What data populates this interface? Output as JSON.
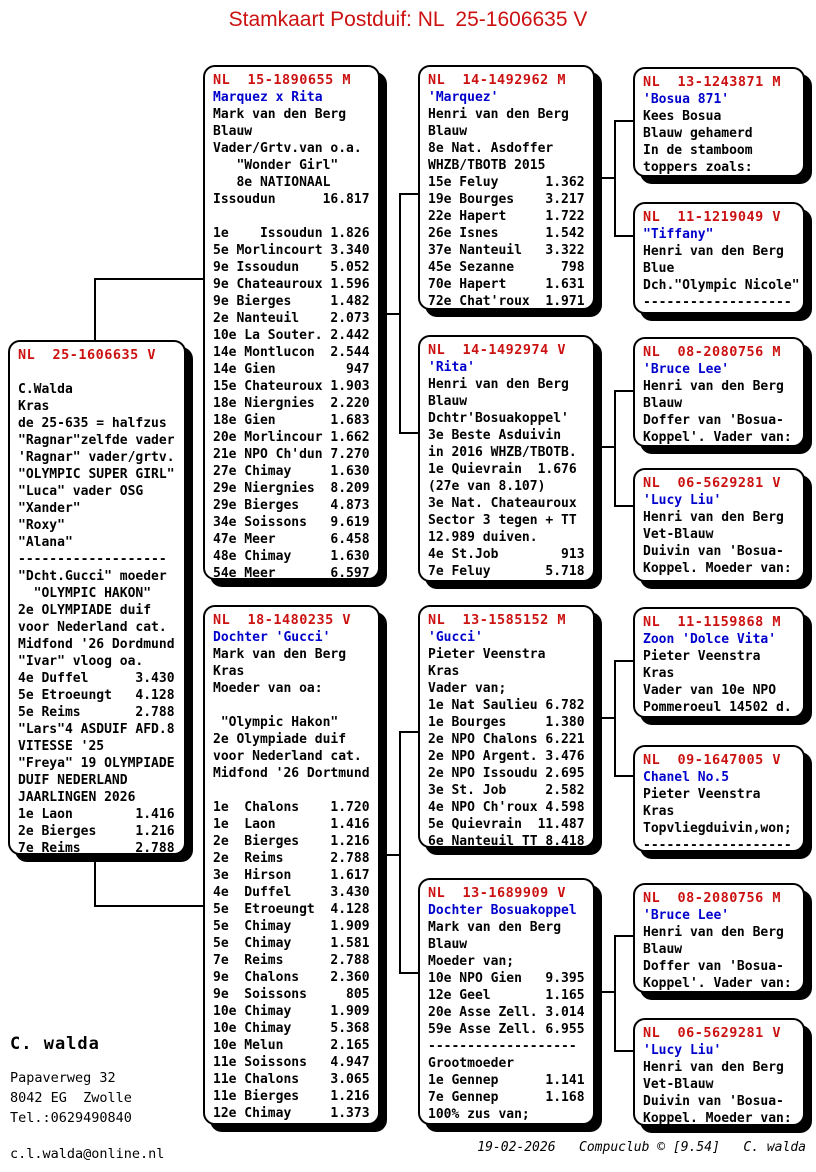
{
  "title": "Stamkaart Postduif: NL  25-1606635 V",
  "colors": {
    "ring_red": "#cc1111",
    "name_blue": "#0000cc"
  },
  "boxes": [
    {
      "header": "NL  25-1606635 V",
      "lines": [
        {
          "s": "b",
          "t": ""
        },
        {
          "s": "t",
          "t": "C.Walda"
        },
        {
          "s": "t",
          "t": "Kras"
        },
        {
          "s": "t",
          "t": "de 25-635 = halfzus"
        },
        {
          "s": "t",
          "t": "\"Ragnar\"zelfde vader"
        },
        {
          "s": "t",
          "t": "'Ragnar\" vader/grtv."
        },
        {
          "s": "t",
          "t": "\"OLYMPIC SUPER GIRL\""
        },
        {
          "s": "t",
          "t": "\"Luca\" vader OSG"
        },
        {
          "s": "t",
          "t": "\"Xander\""
        },
        {
          "s": "t",
          "t": "\"Roxy\""
        },
        {
          "s": "t",
          "t": "\"Alana\""
        },
        {
          "s": "t",
          "t": "-------------------"
        },
        {
          "s": "t",
          "t": "\"Dcht.Gucci\" moeder"
        },
        {
          "s": "t",
          "t": "  \"OLYMPIC HAKON\""
        },
        {
          "s": "t",
          "t": "2e OLYMPIADE duif"
        },
        {
          "s": "t",
          "t": "voor Nederland cat."
        },
        {
          "s": "t",
          "t": "Midfond '26 Dordmund"
        },
        {
          "s": "t",
          "t": "\"Ivar\" vloog oa."
        },
        {
          "s": "t",
          "t": "4e Duffel      3.430"
        },
        {
          "s": "t",
          "t": "5e Etroeungt   4.128"
        },
        {
          "s": "t",
          "t": "5e Reims       2.788"
        },
        {
          "s": "t",
          "t": "\"Lars\"4 ASDUIF AFD.8"
        },
        {
          "s": "t",
          "t": "VITESSE '25"
        },
        {
          "s": "t",
          "t": "\"Freya\" 19 OLYMPIADE"
        },
        {
          "s": "t",
          "t": "DUIF NEDERLAND"
        },
        {
          "s": "t",
          "t": "JAARLINGEN 2026"
        },
        {
          "s": "t",
          "t": "1e Laon        1.416"
        },
        {
          "s": "t",
          "t": "2e Bierges     1.216"
        },
        {
          "s": "t",
          "t": "7e Reims       2.788"
        }
      ]
    },
    {
      "header": "NL  15-1890655 M",
      "lines": [
        {
          "s": "n",
          "t": "Marquez x Rita"
        },
        {
          "s": "t",
          "t": "Mark van den Berg"
        },
        {
          "s": "t",
          "t": "Blauw"
        },
        {
          "s": "t",
          "t": "Vader/Grtv.van o.a."
        },
        {
          "s": "t",
          "t": "   \"Wonder Girl\""
        },
        {
          "s": "t",
          "t": "   8e NATIONAAL"
        },
        {
          "s": "t",
          "t": "Issoudun      16.817"
        },
        {
          "s": "b",
          "t": ""
        },
        {
          "s": "t",
          "t": "1e    Issoudun 1.826"
        },
        {
          "s": "t",
          "t": "5e Morlincourt 3.340"
        },
        {
          "s": "t",
          "t": "9e Issoudun    5.052"
        },
        {
          "s": "t",
          "t": "9e Chateauroux 1.596"
        },
        {
          "s": "t",
          "t": "9e Bierges     1.482"
        },
        {
          "s": "t",
          "t": "2e Nanteuil    2.073"
        },
        {
          "s": "t",
          "t": "10e La Souter. 2.442"
        },
        {
          "s": "t",
          "t": "14e Montlucon  2.544"
        },
        {
          "s": "t",
          "t": "14e Gien         947"
        },
        {
          "s": "t",
          "t": "15e Chateuroux 1.903"
        },
        {
          "s": "t",
          "t": "18e Niergnies  2.220"
        },
        {
          "s": "t",
          "t": "18e Gien       1.683"
        },
        {
          "s": "t",
          "t": "20e Morlincour 1.662"
        },
        {
          "s": "t",
          "t": "21e NPO Ch'dun 7.270"
        },
        {
          "s": "t",
          "t": "27e Chimay     1.630"
        },
        {
          "s": "t",
          "t": "29e Niergnies  8.209"
        },
        {
          "s": "t",
          "t": "29e Bierges    4.873"
        },
        {
          "s": "t",
          "t": "34e Soissons   9.619"
        },
        {
          "s": "t",
          "t": "47e Meer       6.458"
        },
        {
          "s": "t",
          "t": "48e Chimay     1.630"
        },
        {
          "s": "t",
          "t": "54e Meer       6.597"
        }
      ]
    },
    {
      "header": "NL  18-1480235 V",
      "lines": [
        {
          "s": "n",
          "t": "Dochter 'Gucci'"
        },
        {
          "s": "t",
          "t": "Mark van den Berg"
        },
        {
          "s": "t",
          "t": "Kras"
        },
        {
          "s": "t",
          "t": "Moeder van oa:"
        },
        {
          "s": "b",
          "t": ""
        },
        {
          "s": "t",
          "t": " \"Olympic Hakon\""
        },
        {
          "s": "t",
          "t": "2e Olympiade duif"
        },
        {
          "s": "t",
          "t": "voor Nederland cat."
        },
        {
          "s": "t",
          "t": "Midfond '26 Dortmund"
        },
        {
          "s": "b",
          "t": ""
        },
        {
          "s": "t",
          "t": "1e  Chalons    1.720"
        },
        {
          "s": "t",
          "t": "1e  Laon       1.416"
        },
        {
          "s": "t",
          "t": "2e  Bierges    1.216"
        },
        {
          "s": "t",
          "t": "2e  Reims      2.788"
        },
        {
          "s": "t",
          "t": "3e  Hirson     1.617"
        },
        {
          "s": "t",
          "t": "4e  Duffel     3.430"
        },
        {
          "s": "t",
          "t": "5e  Etroeungt  4.128"
        },
        {
          "s": "t",
          "t": "5e  Chimay     1.909"
        },
        {
          "s": "t",
          "t": "5e  Chimay     1.581"
        },
        {
          "s": "t",
          "t": "7e  Reims      2.788"
        },
        {
          "s": "t",
          "t": "9e  Chalons    2.360"
        },
        {
          "s": "t",
          "t": "9e  Soissons     805"
        },
        {
          "s": "t",
          "t": "10e Chimay     1.909"
        },
        {
          "s": "t",
          "t": "10e Chimay     5.368"
        },
        {
          "s": "t",
          "t": "10e Melun      2.165"
        },
        {
          "s": "t",
          "t": "11e Soissons   4.947"
        },
        {
          "s": "t",
          "t": "11e Chalons    3.065"
        },
        {
          "s": "t",
          "t": "11e Bierges    1.216"
        },
        {
          "s": "t",
          "t": "12e Chimay     1.373"
        }
      ]
    },
    {
      "header": "NL  14-1492962 M",
      "lines": [
        {
          "s": "n",
          "t": "'Marquez'"
        },
        {
          "s": "t",
          "t": "Henri van den Berg"
        },
        {
          "s": "t",
          "t": "Blauw"
        },
        {
          "s": "t",
          "t": "8e Nat. Asdoffer"
        },
        {
          "s": "t",
          "t": "WHZB/TBOTB 2015"
        },
        {
          "s": "t",
          "t": "15e Feluy      1.362"
        },
        {
          "s": "t",
          "t": "19e Bourges    3.217"
        },
        {
          "s": "t",
          "t": "22e Hapert     1.722"
        },
        {
          "s": "t",
          "t": "26e Isnes      1.542"
        },
        {
          "s": "t",
          "t": "37e Nanteuil   3.322"
        },
        {
          "s": "t",
          "t": "45e Sezanne      798"
        },
        {
          "s": "t",
          "t": "70e Hapert     1.631"
        },
        {
          "s": "t",
          "t": "72e Chat'roux  1.971"
        }
      ]
    },
    {
      "header": "NL  14-1492974 V",
      "lines": [
        {
          "s": "n",
          "t": "'Rita'"
        },
        {
          "s": "t",
          "t": "Henri van den Berg"
        },
        {
          "s": "t",
          "t": "Blauw"
        },
        {
          "s": "t",
          "t": "Dchtr'Bosuakoppel'"
        },
        {
          "s": "t",
          "t": "3e Beste Asduivin"
        },
        {
          "s": "t",
          "t": "in 2016 WHZB/TBOTB."
        },
        {
          "s": "t",
          "t": "1e Quievrain  1.676"
        },
        {
          "s": "t",
          "t": "(27e van 8.107)"
        },
        {
          "s": "t",
          "t": "3e Nat. Chateauroux"
        },
        {
          "s": "t",
          "t": "Sector 3 tegen + TT"
        },
        {
          "s": "t",
          "t": "12.989 duiven."
        },
        {
          "s": "t",
          "t": "4e St.Job        913"
        },
        {
          "s": "t",
          "t": "7e Feluy       5.718"
        }
      ]
    },
    {
      "header": "NL  13-1585152 M",
      "lines": [
        {
          "s": "n",
          "t": "'Gucci'"
        },
        {
          "s": "t",
          "t": "Pieter Veenstra"
        },
        {
          "s": "t",
          "t": "Kras"
        },
        {
          "s": "t",
          "t": "Vader van;"
        },
        {
          "s": "t",
          "t": "1e Nat Saulieu 6.782"
        },
        {
          "s": "t",
          "t": "1e Bourges     1.380"
        },
        {
          "s": "t",
          "t": "2e NPO Chalons 6.221"
        },
        {
          "s": "t",
          "t": "2e NPO Argent. 3.476"
        },
        {
          "s": "t",
          "t": "2e NPO Issoudu 2.695"
        },
        {
          "s": "t",
          "t": "3e St. Job     2.582"
        },
        {
          "s": "t",
          "t": "4e NPO Ch'roux 4.598"
        },
        {
          "s": "t",
          "t": "5e Quievrain  11.487"
        },
        {
          "s": "t",
          "t": "6e Nanteuil TT 8.418"
        }
      ]
    },
    {
      "header": "NL  13-1689909 V",
      "lines": [
        {
          "s": "n",
          "t": "Dochter Bosuakoppel"
        },
        {
          "s": "t",
          "t": "Mark van den Berg"
        },
        {
          "s": "t",
          "t": "Blauw"
        },
        {
          "s": "t",
          "t": "Moeder van;"
        },
        {
          "s": "t",
          "t": "10e NPO Gien   9.395"
        },
        {
          "s": "t",
          "t": "12e Geel       1.165"
        },
        {
          "s": "t",
          "t": "20e Asse Zell. 3.014"
        },
        {
          "s": "t",
          "t": "59e Asse Zell. 6.955"
        },
        {
          "s": "t",
          "t": "-------------------"
        },
        {
          "s": "t",
          "t": "Grootmoeder"
        },
        {
          "s": "t",
          "t": "1e Gennep      1.141"
        },
        {
          "s": "t",
          "t": "7e Gennep      1.168"
        },
        {
          "s": "t",
          "t": "100% zus van;"
        }
      ]
    },
    {
      "header": "NL  13-1243871 M",
      "lines": [
        {
          "s": "n",
          "t": "'Bosua 871'"
        },
        {
          "s": "t",
          "t": "Kees Bosua"
        },
        {
          "s": "t",
          "t": "Blauw gehamerd"
        },
        {
          "s": "t",
          "t": "In de stamboom"
        },
        {
          "s": "t",
          "t": "toppers zoals:"
        }
      ]
    },
    {
      "header": "NL  11-1219049 V",
      "lines": [
        {
          "s": "n",
          "t": "\"Tiffany\""
        },
        {
          "s": "t",
          "t": "Henri van den Berg"
        },
        {
          "s": "t",
          "t": "Blue"
        },
        {
          "s": "t",
          "t": "Dch.\"Olympic Nicole\""
        },
        {
          "s": "t",
          "t": "-------------------"
        }
      ]
    },
    {
      "header": "NL  08-2080756 M",
      "lines": [
        {
          "s": "n",
          "t": "'Bruce Lee'"
        },
        {
          "s": "t",
          "t": "Henri van den Berg"
        },
        {
          "s": "t",
          "t": "Blauw"
        },
        {
          "s": "t",
          "t": "Doffer van 'Bosua-"
        },
        {
          "s": "t",
          "t": "Koppel'. Vader van:"
        }
      ]
    },
    {
      "header": "NL  06-5629281 V",
      "lines": [
        {
          "s": "n",
          "t": "'Lucy Liu'"
        },
        {
          "s": "t",
          "t": "Henri van den Berg"
        },
        {
          "s": "t",
          "t": "Vet-Blauw"
        },
        {
          "s": "t",
          "t": "Duivin van 'Bosua-"
        },
        {
          "s": "t",
          "t": "Koppel. Moeder van:"
        }
      ]
    },
    {
      "header": "NL  11-1159868 M",
      "lines": [
        {
          "s": "n",
          "t": "Zoon 'Dolce Vita'"
        },
        {
          "s": "t",
          "t": "Pieter Veenstra"
        },
        {
          "s": "t",
          "t": "Kras"
        },
        {
          "s": "t",
          "t": "Vader van 10e NPO"
        },
        {
          "s": "t",
          "t": "Pommeroeul 14502 d."
        }
      ]
    },
    {
      "header": "NL  09-1647005 V",
      "lines": [
        {
          "s": "n",
          "t": "Chanel No.5"
        },
        {
          "s": "t",
          "t": "Pieter Veenstra"
        },
        {
          "s": "t",
          "t": "Kras"
        },
        {
          "s": "t",
          "t": "Topvliegduivin,won;"
        },
        {
          "s": "t",
          "t": "-------------------"
        }
      ]
    },
    {
      "header": "NL  08-2080756 M",
      "lines": [
        {
          "s": "n",
          "t": "'Bruce Lee'"
        },
        {
          "s": "t",
          "t": "Henri van den Berg"
        },
        {
          "s": "t",
          "t": "Blauw"
        },
        {
          "s": "t",
          "t": "Doffer van 'Bosua-"
        },
        {
          "s": "t",
          "t": "Koppel'. Vader van:"
        }
      ]
    },
    {
      "header": "NL  06-5629281 V",
      "lines": [
        {
          "s": "n",
          "t": "'Lucy Liu'"
        },
        {
          "s": "t",
          "t": "Henri van den Berg"
        },
        {
          "s": "t",
          "t": "Vet-Blauw"
        },
        {
          "s": "t",
          "t": "Duivin van 'Bosua-"
        },
        {
          "s": "t",
          "t": "Koppel. Moeder van:"
        }
      ]
    }
  ],
  "footer": {
    "owner_name": "C. walda",
    "address": [
      "Papaverweg 32",
      "8042 EG  Zwolle",
      "Tel.:0629490840"
    ],
    "email": "c.l.walda@online.nl",
    "print_info": "19-02-2026   Compuclub © [9.54]   C. walda"
  }
}
